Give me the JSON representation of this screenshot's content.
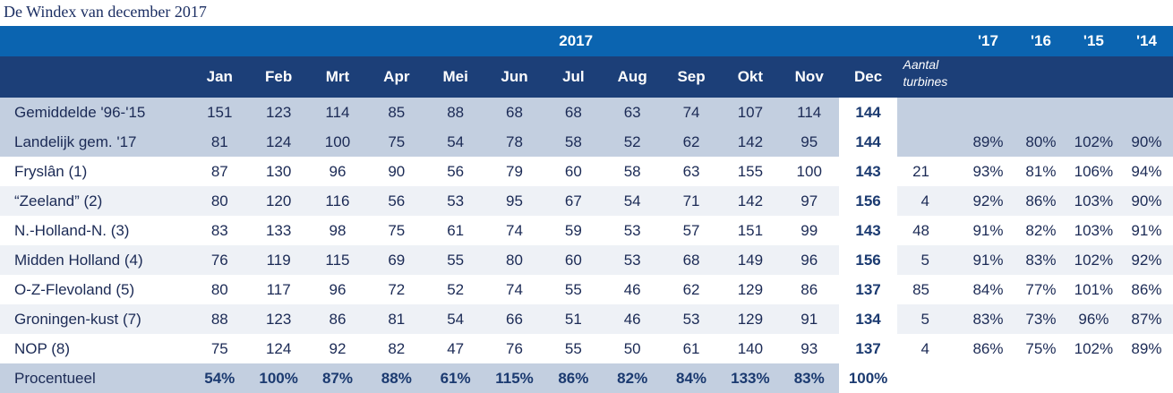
{
  "title": "De Windex van december 2017",
  "header": {
    "year": "2017",
    "turbines_label_1": "Aantal",
    "turbines_label_2": "turbines",
    "year_cols": [
      "'17",
      "'16",
      "'15",
      "'14"
    ],
    "months": [
      "Jan",
      "Feb",
      "Mrt",
      "Apr",
      "Mei",
      "Jun",
      "Jul",
      "Aug",
      "Sep",
      "Okt",
      "Nov",
      "Dec"
    ]
  },
  "rows": [
    {
      "label": "Gemiddelde '96-'15",
      "values": [
        "151",
        "123",
        "114",
        "85",
        "88",
        "68",
        "68",
        "63",
        "74",
        "107",
        "114",
        "144"
      ],
      "turbines": "",
      "years": [
        "",
        "",
        "",
        ""
      ]
    },
    {
      "label": "Landelijk gem. '17",
      "values": [
        "81",
        "124",
        "100",
        "75",
        "54",
        "78",
        "58",
        "52",
        "62",
        "142",
        "95",
        "144"
      ],
      "turbines": "",
      "years": [
        "89%",
        "80%",
        "102%",
        "90%"
      ]
    },
    {
      "label": "Fryslân (1)",
      "values": [
        "87",
        "130",
        "96",
        "90",
        "56",
        "79",
        "60",
        "58",
        "63",
        "155",
        "100",
        "143"
      ],
      "turbines": "21",
      "years": [
        "93%",
        "81%",
        "106%",
        "94%"
      ]
    },
    {
      "label": "“Zeeland” (2)",
      "values": [
        "80",
        "120",
        "116",
        "56",
        "53",
        "95",
        "67",
        "54",
        "71",
        "142",
        "97",
        "156"
      ],
      "turbines": "4",
      "years": [
        "92%",
        "86%",
        "103%",
        "90%"
      ]
    },
    {
      "label": "N.-Holland-N. (3)",
      "values": [
        "83",
        "133",
        "98",
        "75",
        "61",
        "74",
        "59",
        "53",
        "57",
        "151",
        "99",
        "143"
      ],
      "turbines": "48",
      "years": [
        "91%",
        "82%",
        "103%",
        "91%"
      ]
    },
    {
      "label": "Midden Holland (4)",
      "values": [
        "76",
        "119",
        "115",
        "69",
        "55",
        "80",
        "60",
        "53",
        "68",
        "149",
        "96",
        "156"
      ],
      "turbines": "5",
      "years": [
        "91%",
        "83%",
        "102%",
        "92%"
      ]
    },
    {
      "label": "O-Z-Flevoland (5)",
      "values": [
        "80",
        "117",
        "96",
        "72",
        "52",
        "74",
        "55",
        "46",
        "62",
        "129",
        "86",
        "137"
      ],
      "turbines": "85",
      "years": [
        "84%",
        "77%",
        "101%",
        "86%"
      ]
    },
    {
      "label": "Groningen-kust (7)",
      "values": [
        "88",
        "123",
        "86",
        "81",
        "54",
        "66",
        "51",
        "46",
        "53",
        "129",
        "91",
        "134"
      ],
      "turbines": "5",
      "years": [
        "83%",
        "73%",
        "96%",
        "87%"
      ]
    },
    {
      "label": "NOP (8)",
      "values": [
        "75",
        "124",
        "92",
        "82",
        "47",
        "76",
        "55",
        "50",
        "61",
        "140",
        "93",
        "137"
      ],
      "turbines": "4",
      "years": [
        "86%",
        "75%",
        "102%",
        "89%"
      ]
    }
  ],
  "percent_row": {
    "label": "Procentueel",
    "values": [
      "54%",
      "100%",
      "87%",
      "88%",
      "61%",
      "115%",
      "86%",
      "82%",
      "84%",
      "133%",
      "83%",
      "100%"
    ]
  }
}
